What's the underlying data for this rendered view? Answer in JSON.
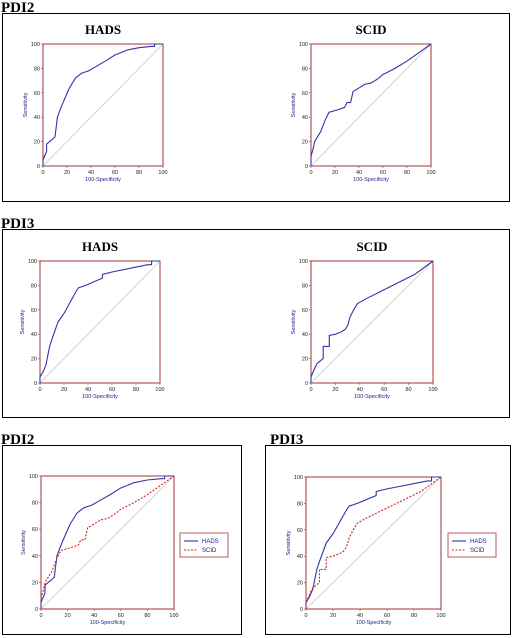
{
  "sections": [
    {
      "label": "PDI2"
    },
    {
      "label": "PDI3"
    },
    {
      "label": "PDI2"
    },
    {
      "label": "PDI3"
    }
  ],
  "colors": {
    "hads": "#3333aa",
    "scid": "#cc2222",
    "frame": "#a83232",
    "diagonal": "#c8c8c8",
    "axis_text": "#1a1a8a"
  },
  "chart_data": [
    {
      "type": "line",
      "section": "PDI2",
      "title": "HADS",
      "xlabel": "100-Specificity",
      "ylabel": "Sensitivity",
      "xlim": [
        0,
        100
      ],
      "ylim": [
        0,
        100
      ],
      "xticks": [
        0,
        20,
        40,
        60,
        80,
        100
      ],
      "yticks": [
        0,
        20,
        40,
        60,
        80,
        100
      ],
      "grid": false,
      "reference_line": "diagonal",
      "series": [
        {
          "color": "#3333aa",
          "dash": "solid",
          "x": [
            0,
            0,
            3,
            3,
            8,
            10,
            12,
            15,
            18,
            22,
            27,
            32,
            38,
            45,
            52,
            60,
            70,
            80,
            90,
            93,
            93,
            100
          ],
          "y": [
            0,
            5,
            12,
            18,
            22,
            24,
            40,
            48,
            55,
            64,
            72,
            76,
            78,
            82,
            86,
            91,
            95,
            97,
            98,
            98,
            100,
            100
          ]
        }
      ]
    },
    {
      "type": "line",
      "section": "PDI2",
      "title": "SCID",
      "xlabel": "100-Specificity",
      "ylabel": "Sensitivity",
      "xlim": [
        0,
        100
      ],
      "ylim": [
        0,
        100
      ],
      "xticks": [
        0,
        20,
        40,
        60,
        80,
        100
      ],
      "yticks": [
        0,
        20,
        40,
        60,
        80,
        100
      ],
      "grid": false,
      "reference_line": "diagonal",
      "series": [
        {
          "color": "#3333aa",
          "dash": "solid",
          "x": [
            0,
            0,
            2,
            3,
            8,
            12,
            15,
            22,
            28,
            30,
            33,
            35,
            40,
            45,
            50,
            55,
            60,
            70,
            80,
            90,
            100
          ],
          "y": [
            0,
            8,
            15,
            20,
            28,
            38,
            44,
            46,
            48,
            52,
            52,
            61,
            64,
            67,
            68,
            71,
            75,
            80,
            86,
            93,
            100
          ]
        }
      ]
    },
    {
      "type": "line",
      "section": "PDI3",
      "title": "HADS",
      "xlabel": "100-Specificity",
      "ylabel": "Sensitivity",
      "xlim": [
        0,
        100
      ],
      "ylim": [
        0,
        100
      ],
      "xticks": [
        0,
        20,
        40,
        60,
        80,
        100
      ],
      "yticks": [
        0,
        20,
        40,
        60,
        80,
        100
      ],
      "grid": false,
      "reference_line": "diagonal",
      "series": [
        {
          "color": "#3333aa",
          "dash": "solid",
          "x": [
            0,
            0,
            3,
            5,
            8,
            10,
            15,
            20,
            25,
            30,
            32,
            38,
            45,
            52,
            52,
            60,
            70,
            80,
            90,
            93,
            93,
            100
          ],
          "y": [
            0,
            5,
            10,
            15,
            30,
            36,
            50,
            57,
            66,
            75,
            78,
            80,
            83,
            86,
            89,
            91,
            93,
            95,
            97,
            97,
            100,
            100
          ]
        }
      ]
    },
    {
      "type": "line",
      "section": "PDI3",
      "title": "SCID",
      "xlabel": "100-Specificity",
      "ylabel": "Sensitivity",
      "xlim": [
        0,
        100
      ],
      "ylim": [
        0,
        100
      ],
      "xticks": [
        0,
        20,
        40,
        60,
        80,
        100
      ],
      "yticks": [
        0,
        20,
        40,
        60,
        80,
        100
      ],
      "grid": false,
      "reference_line": "diagonal",
      "series": [
        {
          "color": "#3333aa",
          "dash": "solid",
          "x": [
            0,
            0,
            3,
            5,
            10,
            10,
            15,
            15,
            20,
            25,
            28,
            30,
            32,
            35,
            38,
            45,
            55,
            65,
            75,
            85,
            100
          ],
          "y": [
            0,
            5,
            12,
            16,
            20,
            30,
            30,
            39,
            40,
            42,
            44,
            47,
            54,
            60,
            65,
            69,
            74,
            79,
            84,
            89,
            100
          ]
        }
      ]
    },
    {
      "type": "line",
      "section": "PDI2",
      "title": "",
      "xlabel": "100-Specificity",
      "ylabel": "Sensitivity",
      "xlim": [
        0,
        100
      ],
      "ylim": [
        0,
        100
      ],
      "xticks": [
        0,
        20,
        40,
        60,
        80,
        100
      ],
      "yticks": [
        0,
        20,
        40,
        60,
        80,
        100
      ],
      "grid": false,
      "reference_line": "diagonal",
      "legend": "right",
      "series": [
        {
          "name": "HADS",
          "color": "#3333aa",
          "dash": "solid",
          "x": [
            0,
            0,
            3,
            3,
            8,
            10,
            12,
            15,
            18,
            22,
            27,
            32,
            38,
            45,
            52,
            60,
            70,
            80,
            90,
            93,
            93,
            100
          ],
          "y": [
            0,
            5,
            12,
            18,
            22,
            24,
            40,
            48,
            55,
            64,
            72,
            76,
            78,
            82,
            86,
            91,
            95,
            97,
            98,
            98,
            100,
            100
          ]
        },
        {
          "name": "SCID",
          "color": "#cc2222",
          "dash": "dashed",
          "x": [
            0,
            0,
            2,
            3,
            8,
            12,
            15,
            22,
            28,
            30,
            33,
            35,
            40,
            45,
            50,
            55,
            60,
            70,
            80,
            90,
            100
          ],
          "y": [
            0,
            8,
            15,
            20,
            28,
            38,
            44,
            46,
            48,
            52,
            52,
            61,
            64,
            67,
            68,
            71,
            75,
            80,
            86,
            93,
            100
          ]
        }
      ]
    },
    {
      "type": "line",
      "section": "PDI3",
      "title": "",
      "xlabel": "100-Specificity",
      "ylabel": "Sensitivity",
      "xlim": [
        0,
        100
      ],
      "ylim": [
        0,
        100
      ],
      "xticks": [
        0,
        20,
        40,
        60,
        80,
        100
      ],
      "yticks": [
        0,
        20,
        40,
        60,
        80,
        100
      ],
      "grid": false,
      "reference_line": "diagonal",
      "legend": "right",
      "series": [
        {
          "name": "HADS",
          "color": "#3333aa",
          "dash": "solid",
          "x": [
            0,
            0,
            3,
            5,
            8,
            10,
            15,
            20,
            25,
            30,
            32,
            38,
            45,
            52,
            52,
            60,
            70,
            80,
            90,
            93,
            93,
            100
          ],
          "y": [
            0,
            5,
            10,
            15,
            30,
            36,
            50,
            57,
            66,
            75,
            78,
            80,
            83,
            86,
            89,
            91,
            93,
            95,
            97,
            97,
            100,
            100
          ]
        },
        {
          "name": "SCID",
          "color": "#cc2222",
          "dash": "dashed",
          "x": [
            0,
            0,
            3,
            5,
            10,
            10,
            15,
            15,
            20,
            25,
            28,
            30,
            32,
            35,
            38,
            45,
            55,
            65,
            75,
            85,
            100
          ],
          "y": [
            0,
            5,
            12,
            16,
            20,
            30,
            30,
            39,
            40,
            42,
            44,
            47,
            54,
            60,
            65,
            69,
            74,
            79,
            84,
            89,
            100
          ]
        }
      ]
    }
  ]
}
